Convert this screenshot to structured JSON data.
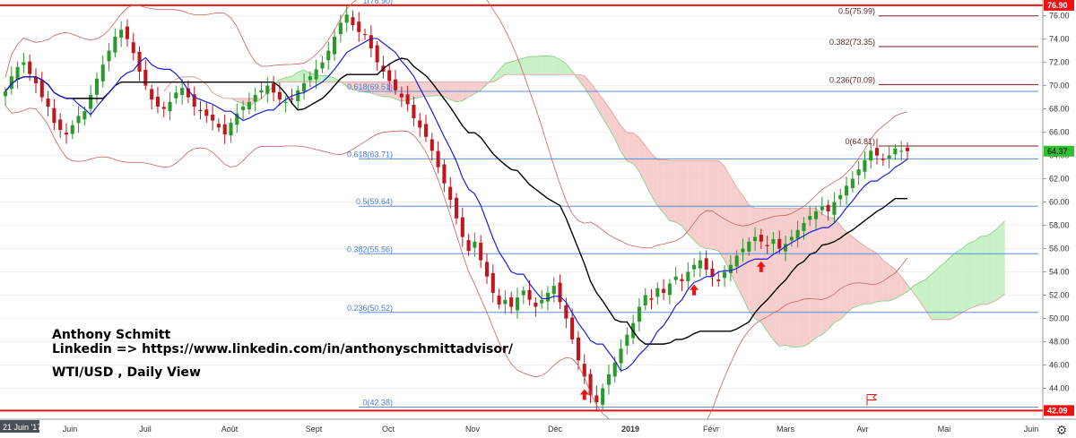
{
  "watermark": {
    "author": "Anthony Schmitt",
    "linkedin": "Linkedin => https://www.linkedin.com/in/anthonyschmittadvisor/",
    "view": "WTI/USD , Daily View"
  },
  "toolbar": {
    "settings_icon": "gear-icon"
  },
  "colors": {
    "candle_up": "#2a9a2a",
    "candle_down": "#c0161d",
    "tenkan": "#1b1fd8",
    "kijun": "#000000",
    "bollinger": "#c9625f",
    "fib_line": "#5b8fdb",
    "fib_label": "#4a7fd1",
    "fib_ext_line": "#7a1f1f",
    "fib_ext_label": "#5a2a2a",
    "cloud_bull": "#bfeebe",
    "cloud_bear": "#f6c5c5",
    "support_resistance": "#ee1111",
    "price_tag": "#2fbf2f",
    "arrow": "#ee1111"
  },
  "chart_data": {
    "type": "candlestick",
    "title": "WTI/USD , Daily View",
    "ylim": [
      41.5,
      77.2
    ],
    "y_ticks": [
      44,
      46,
      48,
      50,
      52,
      54,
      56,
      58,
      60,
      62,
      64,
      66,
      68,
      70,
      72,
      74,
      76
    ],
    "x_labels": [
      "21 Juin '17",
      "Juin",
      "Juil",
      "Août",
      "Sept",
      "Oct",
      "Nov",
      "Déc",
      "2019",
      "Févr",
      "Mars",
      "Avr",
      "Mai",
      "Juin"
    ],
    "fibonacci_retracement": [
      {
        "label": "1(76.90)",
        "value": 76.9
      },
      {
        "label": "0.618(69.51)",
        "value": 69.51
      },
      {
        "label": "0.618(63.71)",
        "value": 63.71
      },
      {
        "label": "0.5(59.64)",
        "value": 59.64
      },
      {
        "label": "0.382(55.56)",
        "value": 55.56
      },
      {
        "label": "0.236(50.52)",
        "value": 50.52
      },
      {
        "label": "0(42.38)",
        "value": 42.38
      }
    ],
    "fibonacci_extension": [
      {
        "label": "0.5(75.99)",
        "value": 75.99
      },
      {
        "label": "0.382(73.35)",
        "value": 73.35
      },
      {
        "label": "0.236(70.09)",
        "value": 70.09
      },
      {
        "label": "0(64.81)",
        "value": 64.81
      }
    ],
    "horizontal_levels": [
      {
        "label": "76.90",
        "value": 76.9
      },
      {
        "label": "42.09",
        "value": 42.09
      }
    ],
    "last_price": {
      "label": "64.37",
      "value": 64.37
    },
    "daily_closes": [
      69.5,
      70.8,
      71.6,
      72.0,
      71.0,
      70.2,
      69.0,
      68.2,
      66.8,
      66.2,
      65.8,
      66.6,
      67.4,
      67.8,
      69.2,
      70.6,
      71.8,
      73.0,
      74.2,
      74.8,
      74.0,
      72.8,
      71.2,
      70.0,
      68.8,
      68.2,
      68.0,
      68.6,
      69.4,
      69.8,
      69.0,
      68.2,
      67.8,
      67.4,
      67.0,
      66.4,
      65.8,
      66.8,
      67.6,
      68.2,
      68.6,
      69.2,
      69.6,
      70.0,
      69.4,
      68.8,
      68.6,
      68.8,
      69.6,
      70.2,
      70.8,
      71.4,
      72.0,
      73.0,
      74.2,
      75.4,
      76.1,
      75.2,
      74.6,
      74.4,
      73.2,
      72.0,
      71.2,
      70.4,
      69.6,
      69.0,
      68.4,
      67.2,
      66.4,
      65.6,
      64.4,
      63.0,
      61.6,
      60.2,
      58.6,
      57.0,
      55.8,
      56.6,
      55.0,
      53.6,
      52.2,
      51.2,
      51.6,
      51.0,
      51.8,
      52.4,
      51.6,
      51.0,
      51.6,
      52.2,
      52.8,
      51.4,
      50.0,
      48.2,
      46.4,
      45.0,
      43.4,
      42.8,
      44.0,
      45.2,
      46.2,
      47.4,
      48.6,
      49.6,
      51.0,
      52.0,
      51.6,
      52.6,
      52.2,
      53.0,
      53.6,
      53.2,
      54.0,
      54.6,
      55.0,
      54.2,
      53.6,
      53.2,
      54.0,
      54.6,
      55.4,
      56.0,
      56.6,
      57.0,
      56.6,
      56.2,
      56.8,
      56.0,
      56.4,
      57.0,
      57.6,
      58.2,
      58.8,
      59.2,
      59.6,
      59.2,
      60.0,
      60.6,
      61.4,
      62.0,
      62.8,
      63.6,
      64.4,
      64.0,
      63.6,
      64.0,
      64.6,
      64.4,
      64.37
    ]
  }
}
